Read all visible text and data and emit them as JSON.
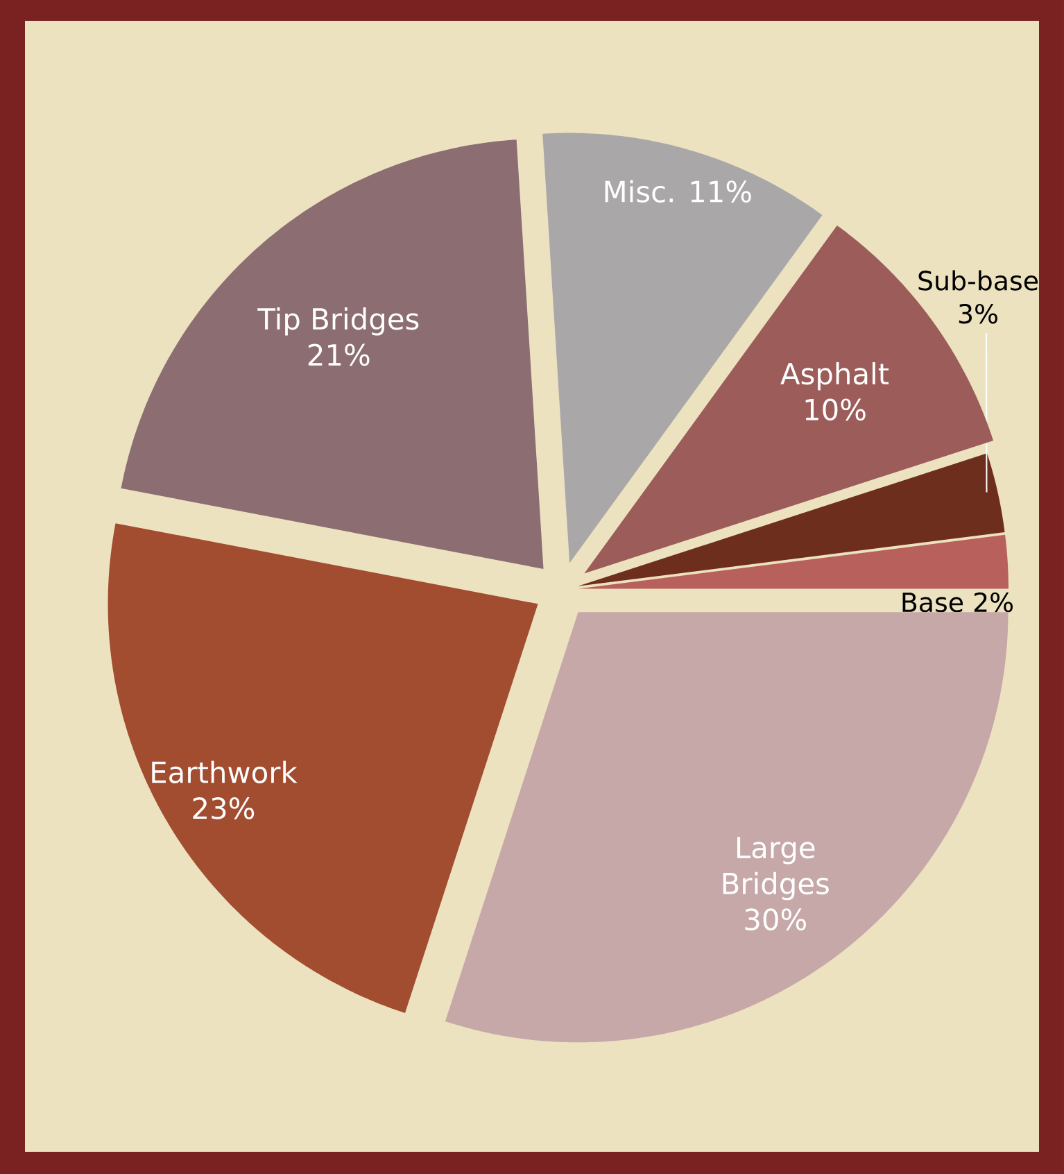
{
  "chart_data": {
    "type": "pie",
    "categories": [
      "Base",
      "Sub-base",
      "Asphalt",
      "Misc.",
      "Tip Bridges",
      "Earthwork",
      "Large Bridges"
    ],
    "values": [
      2,
      3,
      10,
      11,
      21,
      23,
      30
    ],
    "value_labels": [
      "2%",
      "3%",
      "10%",
      "11%",
      "21%",
      "23%",
      "30%"
    ],
    "colors": [
      "#b8605c",
      "#6e2e1e",
      "#9c5c5a",
      "#a9a7a8",
      "#8c6e72",
      "#a24c30",
      "#c6a8a8"
    ]
  }
}
